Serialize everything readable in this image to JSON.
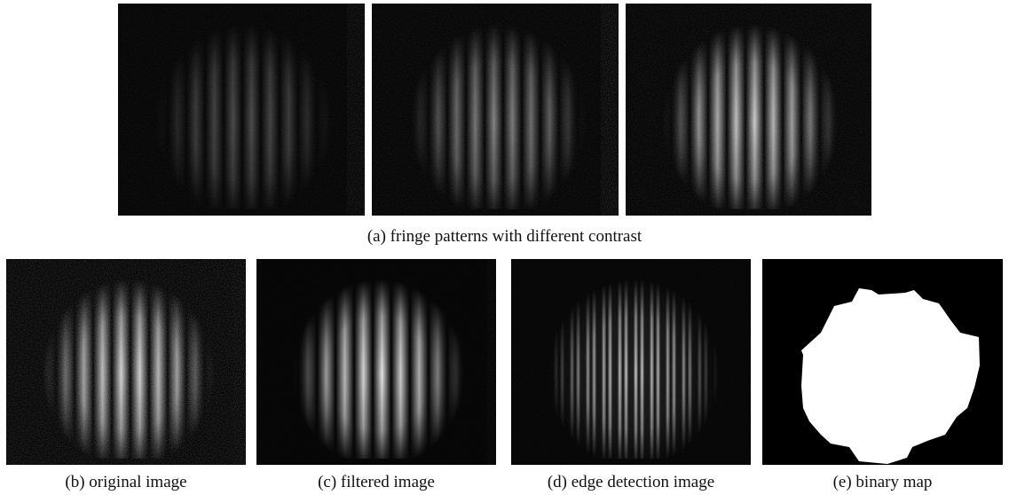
{
  "figure": {
    "top_caption": "(a) fringe patterns with different contrast",
    "bottom_captions": [
      "(b) original image",
      "(c) filtered image",
      "(d) edge detection image",
      "(e) binary map"
    ]
  }
}
